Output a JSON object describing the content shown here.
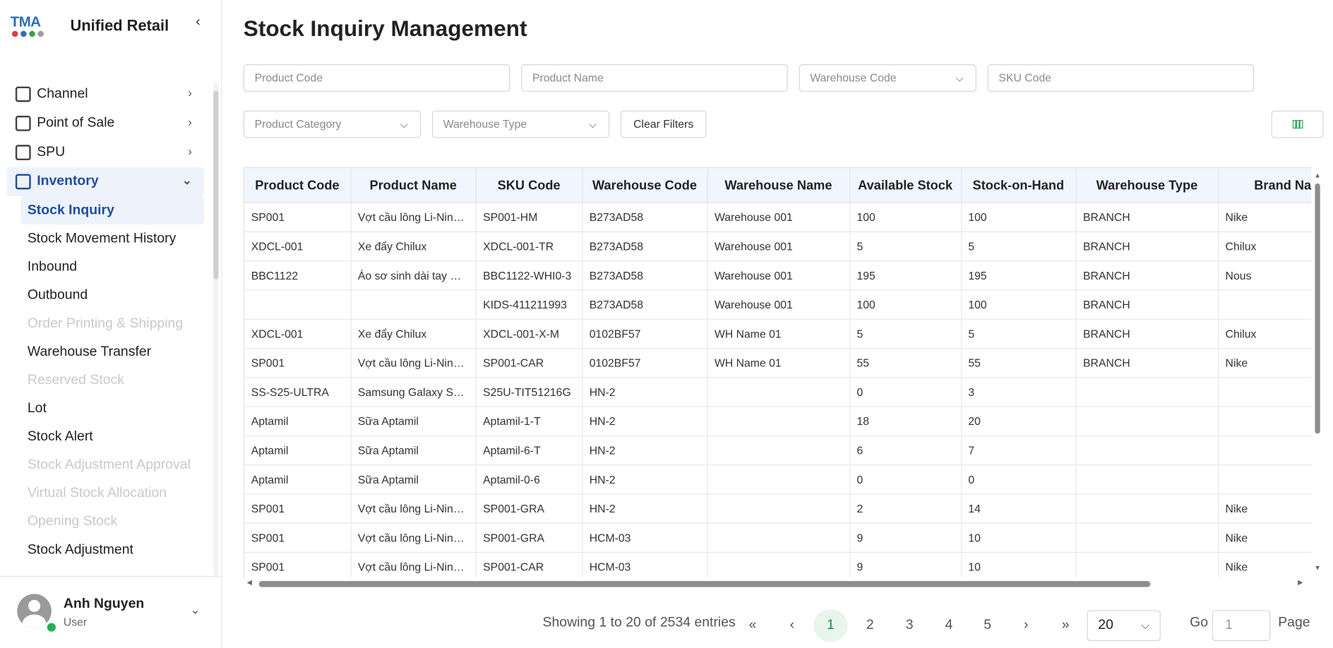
{
  "brand": {
    "logo_text": "TMA",
    "name": "Unified Retail",
    "collapse_icon": "‹"
  },
  "nav": {
    "top_items": [
      {
        "label": "Channel",
        "icon": "storefront-icon"
      },
      {
        "label": "Point of Sale",
        "icon": "register-icon"
      },
      {
        "label": "SPU",
        "icon": "clipboard-check-icon"
      }
    ],
    "inventory": {
      "label": "Inventory",
      "icon": "archive-box-icon"
    },
    "sub_items": [
      {
        "label": "Stock Inquiry",
        "state": "active"
      },
      {
        "label": "Stock Movement History",
        "state": "normal"
      },
      {
        "label": "Inbound",
        "state": "normal"
      },
      {
        "label": "Outbound",
        "state": "normal"
      },
      {
        "label": "Order Printing & Shipping",
        "state": "disabled"
      },
      {
        "label": "Warehouse Transfer",
        "state": "normal"
      },
      {
        "label": "Reserved Stock",
        "state": "disabled"
      },
      {
        "label": "Lot",
        "state": "normal"
      },
      {
        "label": "Stock Alert",
        "state": "normal"
      },
      {
        "label": "Stock Adjustment Approval",
        "state": "disabled"
      },
      {
        "label": "Virtual Stock Allocation",
        "state": "disabled"
      },
      {
        "label": "Opening Stock",
        "state": "disabled"
      },
      {
        "label": "Stock Adjustment",
        "state": "normal"
      }
    ]
  },
  "user": {
    "name": "Anh Nguyen",
    "role": "User"
  },
  "page": {
    "title": "Stock Inquiry Management"
  },
  "filters": {
    "product_code": "Product Code",
    "product_name": "Product Name",
    "warehouse_code": "Warehouse Code",
    "sku_code": "SKU Code",
    "product_category": "Product Category",
    "warehouse_type": "Warehouse Type",
    "clear": "Clear Filters"
  },
  "colors": {
    "accent": "#1f4e9e",
    "active_bg": "#eef3fb",
    "pager_active": "#1f8a3d",
    "header_bg": "#f0f6fd"
  },
  "table": {
    "columns": [
      "Product Code",
      "Product Name",
      "SKU Code",
      "Warehouse Code",
      "Warehouse Name",
      "Available Stock",
      "Stock-on-Hand",
      "Warehouse Type",
      "Brand Nam"
    ],
    "rows": [
      [
        "SP001",
        "Vợt cầu lông Li-Nin…",
        "SP001-HM",
        "B273AD58",
        "Warehouse 001",
        "100",
        "100",
        "BRANCH",
        "Nike"
      ],
      [
        "XDCL-001",
        "Xe đẩy Chilux",
        "XDCL-001-TR",
        "B273AD58",
        "Warehouse 001",
        "5",
        "5",
        "BRANCH",
        "Chilux"
      ],
      [
        "BBC1122",
        "Áo sơ sinh dài tay X…",
        "BBC1122-WHI0-3",
        "B273AD58",
        "Warehouse 001",
        "195",
        "195",
        "BRANCH",
        "Nous"
      ],
      [
        "",
        "",
        "KIDS-411211993",
        "B273AD58",
        "Warehouse 001",
        "100",
        "100",
        "BRANCH",
        ""
      ],
      [
        "XDCL-001",
        "Xe đẩy Chilux",
        "XDCL-001-X-M",
        "0102BF57",
        "WH Name 01",
        "5",
        "5",
        "BRANCH",
        "Chilux"
      ],
      [
        "SP001",
        "Vợt cầu lông Li-Nin…",
        "SP001-CAR",
        "0102BF57",
        "WH Name 01",
        "55",
        "55",
        "BRANCH",
        "Nike"
      ],
      [
        "SS-S25-ULTRA",
        "Samsung Galaxy S…",
        "S25U-TIT51216G",
        "HN-2",
        "",
        "0",
        "3",
        "",
        ""
      ],
      [
        "Aptamil",
        "Sữa Aptamil",
        "Aptamil-1-T",
        "HN-2",
        "",
        "18",
        "20",
        "",
        ""
      ],
      [
        "Aptamil",
        "Sữa Aptamil",
        "Aptamil-6-T",
        "HN-2",
        "",
        "6",
        "7",
        "",
        ""
      ],
      [
        "Aptamil",
        "Sữa Aptamil",
        "Aptamil-0-6",
        "HN-2",
        "",
        "0",
        "0",
        "",
        ""
      ],
      [
        "SP001",
        "Vợt cầu lông Li-Nin…",
        "SP001-GRA",
        "HN-2",
        "",
        "2",
        "14",
        "",
        "Nike"
      ],
      [
        "SP001",
        "Vợt cầu lông Li-Nin…",
        "SP001-GRA",
        "HCM-03",
        "",
        "9",
        "10",
        "",
        "Nike"
      ],
      [
        "SP001",
        "Vợt cầu lông Li-Nin…",
        "SP001-CAR",
        "HCM-03",
        "",
        "9",
        "10",
        "",
        "Nike"
      ]
    ]
  },
  "pagination": {
    "showing": "Showing 1 to 20 of 2534 entries",
    "first": "«",
    "prev": "‹",
    "pages": [
      "1",
      "2",
      "3",
      "4",
      "5"
    ],
    "current": "1",
    "next": "›",
    "last": "»",
    "page_size": "20",
    "go_label": "Go",
    "go_placeholder": "1",
    "page_label": "Page"
  }
}
